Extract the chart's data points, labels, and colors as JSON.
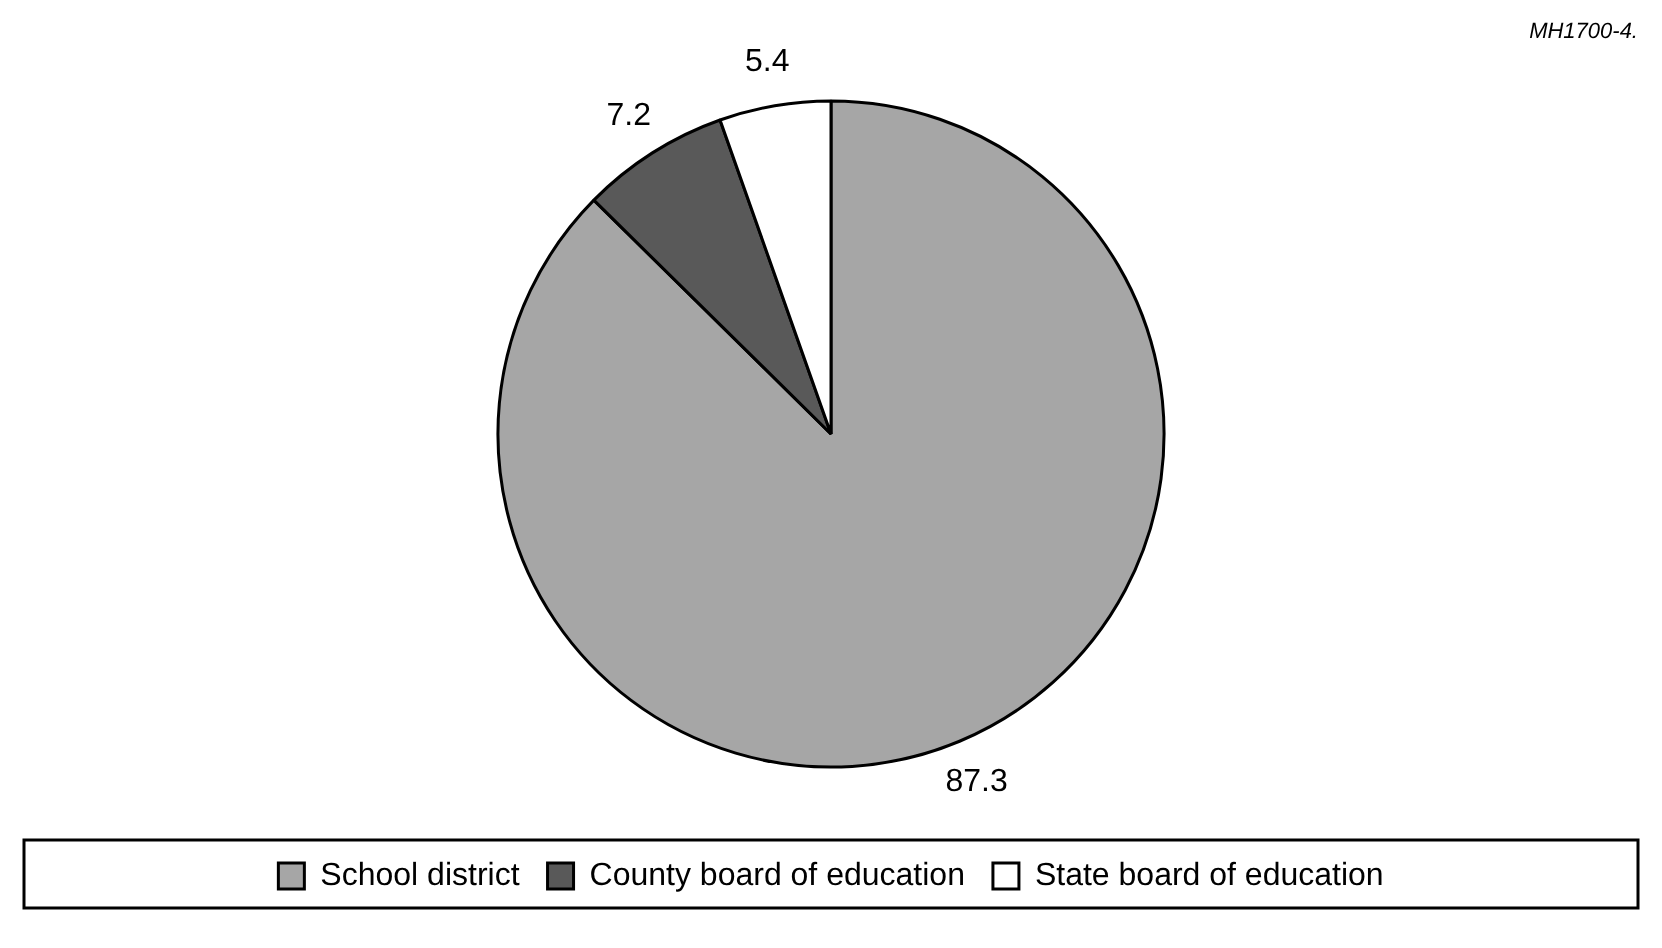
{
  "chart_data": {
    "type": "pie",
    "categories": [
      "School district",
      "County board of education",
      "State board of education"
    ],
    "values": [
      87.3,
      7.2,
      5.4
    ],
    "colors": [
      "#a6a6a6",
      "#595959",
      "#ffffff"
    ],
    "data_labels": true,
    "legend": "bottom",
    "annotations": [
      "MH1700-4."
    ]
  }
}
